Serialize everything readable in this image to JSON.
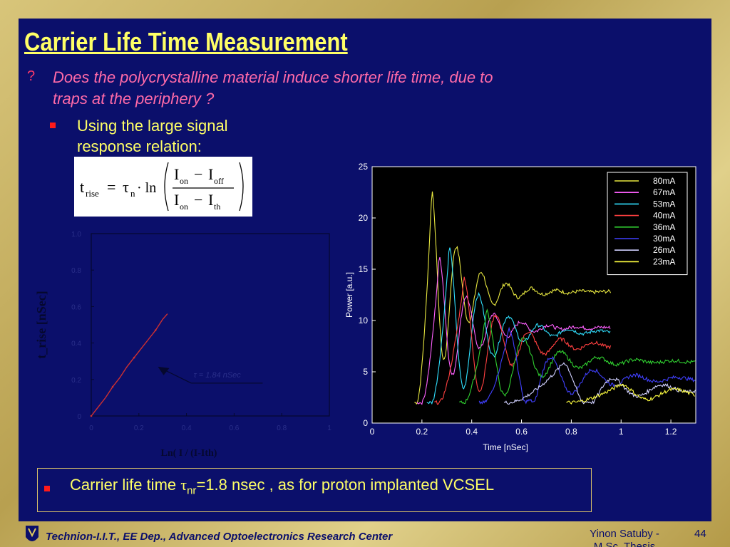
{
  "slide": {
    "title": "Carrier Life Time Measurement",
    "question_mark": "?",
    "question": "Does the polycrystalline material induce shorter life time, due to traps at the periphery ?",
    "bullet_text": "Using the large signal response relation:",
    "formula": {
      "lhs": "t",
      "lhs_sub": "rise",
      "eq": "=",
      "tau": "τ",
      "tau_sub": "n",
      "ln": "· ln",
      "num_a": "I",
      "num_a_sub": "on",
      "minus": "−",
      "num_b": "I",
      "num_b_sub": "off",
      "den_a": "I",
      "den_a_sub": "on",
      "den_b": "I",
      "den_b_sub": "th"
    },
    "conclusion": {
      "prefix": "Carrier life time ",
      "tau": "τ",
      "sub": "nr",
      "suffix": "=1.8 nsec , as for proton implanted VCSEL"
    },
    "footer": {
      "org": "Technion-I.I.T., EE Dep., Advanced Optoelectronics Research Center",
      "author": "Yinon Satuby - M.Sc. Thesis",
      "page": "44"
    }
  },
  "chart_data": [
    {
      "type": "line",
      "xlabel": "Ln( I / (I-Ith)",
      "ylabel": "t_rise [nSec]",
      "xlim": [
        0,
        1
      ],
      "ylim": [
        0,
        1
      ],
      "x_ticks": [
        "0",
        "0.2",
        "0.4",
        "0.6",
        "0.8",
        "1"
      ],
      "y_ticks": [
        "0",
        "0.2",
        "0.4",
        "0.6",
        "0.8",
        "1.0"
      ],
      "annotation": "τ = 1.84 nSec",
      "series": [
        {
          "values": [
            [
              0,
              0
            ],
            [
              0.03,
              0.05
            ],
            [
              0.06,
              0.1
            ],
            [
              0.09,
              0.16
            ],
            [
              0.12,
              0.21
            ],
            [
              0.15,
              0.27
            ],
            [
              0.18,
              0.32
            ],
            [
              0.21,
              0.37
            ],
            [
              0.24,
              0.42
            ],
            [
              0.27,
              0.47
            ],
            [
              0.3,
              0.53
            ],
            [
              0.32,
              0.56
            ]
          ]
        }
      ],
      "colors": {
        "line": "#d03030"
      }
    },
    {
      "type": "line",
      "xlabel": "Time [nSec]",
      "ylabel": "Power [a.u.]",
      "xlim": [
        0,
        1.3
      ],
      "ylim": [
        0,
        25
      ],
      "x_ticks": [
        "0",
        "0.2",
        "0.4",
        "0.6",
        "0.8",
        "1",
        "1.2"
      ],
      "y_ticks": [
        "0",
        "5",
        "10",
        "15",
        "20",
        "25"
      ],
      "legend": "top-right",
      "series": [
        {
          "name": "80mA",
          "color": "#e8e840",
          "t0": 0.18,
          "peak": 22.8,
          "tp": 0.24,
          "settle": 12.8,
          "period": 0.1,
          "decay": 0.12,
          "end": 0.96
        },
        {
          "name": "67mA",
          "color": "#ff60ff",
          "t0": 0.2,
          "peak": 16.3,
          "tp": 0.27,
          "settle": 9.3,
          "period": 0.11,
          "decay": 0.13,
          "end": 0.96
        },
        {
          "name": "53mA",
          "color": "#30e0ff",
          "t0": 0.24,
          "peak": 17.3,
          "tp": 0.31,
          "settle": 8.9,
          "period": 0.12,
          "decay": 0.14,
          "end": 0.96
        },
        {
          "name": "40mA",
          "color": "#ff4040",
          "t0": 0.27,
          "peak": 14.2,
          "tp": 0.37,
          "settle": 7.6,
          "period": 0.13,
          "decay": 0.16,
          "end": 0.96
        },
        {
          "name": "36mA",
          "color": "#30d030",
          "t0": 0.37,
          "peak": 11.0,
          "tp": 0.46,
          "settle": 6.0,
          "period": 0.15,
          "decay": 0.18,
          "end": 1.3
        },
        {
          "name": "30mA",
          "color": "#4040ff",
          "t0": 0.45,
          "peak": 9.2,
          "tp": 0.55,
          "settle": 4.3,
          "period": 0.17,
          "decay": 0.2,
          "end": 1.3
        },
        {
          "name": "26mA",
          "color": "#d0d0ff",
          "t0": 0.55,
          "peak": 5.9,
          "tp": 0.77,
          "settle": 3.3,
          "period": 0.2,
          "decay": 0.22,
          "end": 1.3
        },
        {
          "name": "23mA",
          "color": "#ffff40",
          "t0": 0.8,
          "peak": 3.8,
          "tp": 1.0,
          "settle": 2.9,
          "period": 0.22,
          "decay": 0.25,
          "end": 1.3
        }
      ]
    }
  ]
}
